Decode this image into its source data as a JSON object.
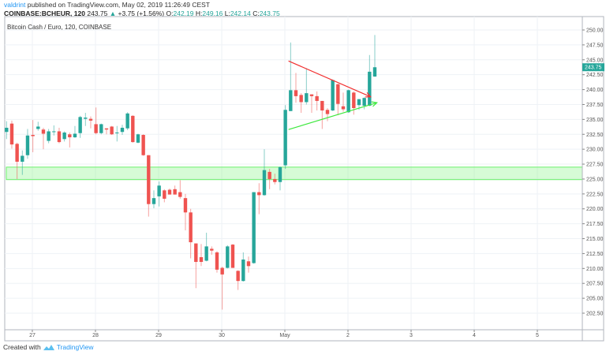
{
  "header": {
    "user": "valdrint",
    "published": "published on TradingView.com, May 02, 2019 11:26:49 CEST",
    "symbol": "COINBASE:BCHEUR, 120",
    "last": "243.75",
    "change": "+3.75 (+1.56%)",
    "o_label": "O:",
    "o": "242.19",
    "h_label": "H:",
    "h": "249.16",
    "l_label": "L:",
    "l": "242.14",
    "c_label": "C:",
    "c": "243.75"
  },
  "footer": {
    "created_with": "Created with",
    "brand": "TradingView"
  },
  "colors": {
    "up": "#26a69a",
    "down": "#ef5350",
    "zone": "#6cf06c",
    "resistance": "#f23030",
    "support": "#3ee83e",
    "grid": "#eef2f6"
  },
  "chart_data": {
    "type": "candlestick",
    "title": "Bitcoin Cash / Euro, 120, COINBASE",
    "interval": "120",
    "ylim": [
      200.5,
      251.5
    ],
    "y_ticks": [
      "250.00",
      "247.50",
      "245.00",
      "242.50",
      "240.00",
      "237.50",
      "235.00",
      "232.50",
      "230.00",
      "227.50",
      "225.00",
      "222.50",
      "220.00",
      "217.50",
      "215.00",
      "212.50",
      "210.00",
      "207.50",
      "205.00",
      "202.50"
    ],
    "x_ticks": [
      "27",
      "28",
      "29",
      "30",
      "May",
      "2",
      "3",
      "4",
      "5"
    ],
    "last_price_label": "243.75",
    "grid": true,
    "ohlc": [
      [
        232.9,
        234.7,
        231.7,
        233.6
      ],
      [
        234.3,
        234.8,
        230.1,
        230.8
      ],
      [
        230.9,
        231.1,
        225.0,
        227.9
      ],
      [
        227.9,
        229.8,
        225.7,
        228.9
      ],
      [
        229.0,
        233.4,
        228.4,
        232.3
      ],
      [
        232.4,
        234.9,
        229.5,
        232.2
      ],
      [
        233.4,
        234.6,
        233.1,
        233.8
      ],
      [
        233.3,
        233.6,
        230.0,
        232.6
      ],
      [
        231.4,
        233.4,
        231.0,
        233.0
      ],
      [
        232.9,
        234.0,
        232.3,
        233.0
      ],
      [
        233.0,
        233.6,
        231.0,
        231.2
      ],
      [
        231.7,
        233.0,
        231.3,
        232.8
      ],
      [
        232.5,
        232.8,
        230.3,
        232.0
      ],
      [
        232.0,
        233.9,
        231.9,
        232.6
      ],
      [
        232.7,
        235.6,
        231.9,
        235.4
      ],
      [
        235.1,
        236.1,
        233.9,
        235.3
      ],
      [
        235.1,
        235.5,
        233.5,
        234.8
      ],
      [
        234.2,
        237.0,
        232.5,
        232.7
      ],
      [
        232.7,
        234.3,
        232.5,
        234.2
      ],
      [
        233.5,
        233.5,
        232.5,
        233.3
      ],
      [
        233.8,
        233.9,
        232.4,
        232.5
      ],
      [
        232.7,
        233.9,
        231.3,
        232.8
      ],
      [
        232.9,
        234.1,
        232.4,
        233.6
      ],
      [
        233.5,
        236.2,
        233.2,
        236.0
      ],
      [
        235.6,
        235.7,
        231.1,
        231.2
      ],
      [
        231.1,
        232.6,
        231.0,
        232.5
      ],
      [
        232.4,
        232.5,
        228.9,
        229.0
      ],
      [
        229.0,
        229.0,
        218.7,
        220.8
      ],
      [
        220.8,
        223.1,
        220.1,
        221.8
      ],
      [
        222.1,
        224.6,
        220.4,
        223.9
      ],
      [
        223.1,
        223.3,
        221.1,
        221.7
      ],
      [
        223.2,
        223.4,
        222.4,
        222.4
      ],
      [
        223.3,
        223.9,
        222.4,
        222.4
      ],
      [
        222.8,
        224.8,
        221.7,
        222.0
      ],
      [
        221.8,
        222.5,
        216.4,
        219.4
      ],
      [
        219.4,
        220.0,
        211.7,
        214.4
      ],
      [
        214.2,
        214.2,
        206.7,
        211.1
      ],
      [
        211.9,
        214.1,
        210.4,
        211.1
      ],
      [
        211.3,
        216.0,
        211.2,
        213.7
      ],
      [
        213.3,
        213.7,
        212.3,
        213.0
      ],
      [
        212.7,
        212.9,
        209.3,
        209.8
      ],
      [
        210.1,
        210.3,
        203.1,
        209.0
      ],
      [
        210.1,
        213.9,
        210.0,
        213.7
      ],
      [
        214.0,
        214.1,
        210.1,
        210.1
      ],
      [
        209.6,
        209.7,
        206.4,
        207.9
      ],
      [
        207.9,
        212.7,
        207.8,
        211.5
      ],
      [
        211.2,
        212.0,
        209.3,
        210.4
      ],
      [
        210.9,
        222.8,
        210.8,
        222.8
      ],
      [
        222.8,
        224.3,
        219.1,
        222.3
      ],
      [
        222.3,
        230.0,
        222.2,
        226.5
      ],
      [
        226.2,
        226.7,
        223.3,
        225.0
      ],
      [
        225.0,
        225.9,
        224.1,
        224.5
      ],
      [
        224.5,
        227.1,
        223.1,
        227.0
      ],
      [
        227.3,
        237.4,
        226.7,
        236.6
      ],
      [
        236.4,
        247.9,
        236.4,
        239.9
      ],
      [
        239.9,
        242.8,
        237.8,
        238.9
      ],
      [
        239.1,
        239.4,
        236.1,
        237.9
      ],
      [
        237.9,
        243.6,
        237.5,
        239.4
      ],
      [
        239.2,
        239.2,
        236.1,
        238.9
      ],
      [
        238.9,
        239.7,
        236.5,
        238.1
      ],
      [
        238.1,
        238.1,
        233.4,
        236.5
      ],
      [
        236.6,
        236.9,
        234.7,
        235.9
      ],
      [
        236.5,
        241.7,
        236.4,
        241.6
      ],
      [
        240.9,
        241.0,
        235.7,
        237.6
      ],
      [
        237.2,
        239.5,
        236.3,
        236.7
      ],
      [
        236.2,
        240.0,
        236.1,
        239.9
      ],
      [
        239.5,
        239.7,
        235.8,
        236.9
      ],
      [
        237.4,
        238.4,
        236.6,
        238.4
      ],
      [
        237.3,
        238.7,
        236.7,
        238.6
      ],
      [
        237.3,
        245.8,
        237.2,
        243.0
      ],
      [
        242.19,
        249.16,
        242.14,
        243.75
      ]
    ],
    "annotations": {
      "support_zone": {
        "price_low": 224.9,
        "price_high": 227.0
      },
      "resistance_line": {
        "from_bar": 53.6,
        "from_price": 244.8,
        "to_bar": 69.2,
        "to_price": 238.8
      },
      "support_line": {
        "from_bar": 53.6,
        "from_price": 233.3,
        "to_bar": 70.4,
        "to_price": 237.8
      }
    }
  }
}
